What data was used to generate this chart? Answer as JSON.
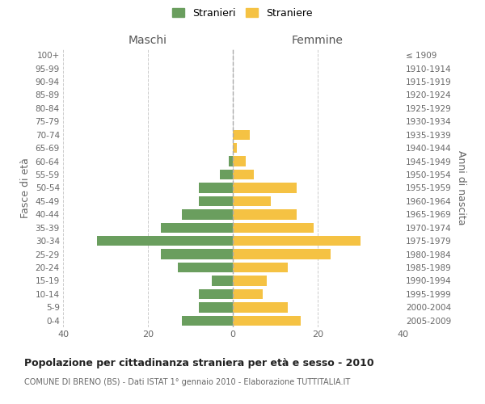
{
  "age_groups": [
    "100+",
    "95-99",
    "90-94",
    "85-89",
    "80-84",
    "75-79",
    "70-74",
    "65-69",
    "60-64",
    "55-59",
    "50-54",
    "45-49",
    "40-44",
    "35-39",
    "30-34",
    "25-29",
    "20-24",
    "15-19",
    "10-14",
    "5-9",
    "0-4"
  ],
  "birth_years": [
    "≤ 1909",
    "1910-1914",
    "1915-1919",
    "1920-1924",
    "1925-1929",
    "1930-1934",
    "1935-1939",
    "1940-1944",
    "1945-1949",
    "1950-1954",
    "1955-1959",
    "1960-1964",
    "1965-1969",
    "1970-1974",
    "1975-1979",
    "1980-1984",
    "1985-1989",
    "1990-1994",
    "1995-1999",
    "2000-2004",
    "2005-2009"
  ],
  "maschi": [
    0,
    0,
    0,
    0,
    0,
    0,
    0,
    0,
    1,
    3,
    8,
    8,
    12,
    17,
    32,
    17,
    13,
    5,
    8,
    8,
    12
  ],
  "femmine": [
    0,
    0,
    0,
    0,
    0,
    0,
    4,
    1,
    3,
    5,
    15,
    9,
    15,
    19,
    30,
    23,
    13,
    8,
    7,
    13,
    16
  ],
  "maschi_color": "#6a9e5e",
  "femmine_color": "#f5c243",
  "background_color": "#ffffff",
  "grid_color": "#cccccc",
  "title": "Popolazione per cittadinanza straniera per età e sesso - 2010",
  "subtitle": "COMUNE DI BRENO (BS) - Dati ISTAT 1° gennaio 2010 - Elaborazione TUTTITALIA.IT",
  "xlabel_left": "Maschi",
  "xlabel_right": "Femmine",
  "ylabel_left": "Fasce di età",
  "ylabel_right": "Anni di nascita",
  "legend_maschi": "Stranieri",
  "legend_femmine": "Straniere",
  "xlim": 40,
  "bar_height": 0.75
}
